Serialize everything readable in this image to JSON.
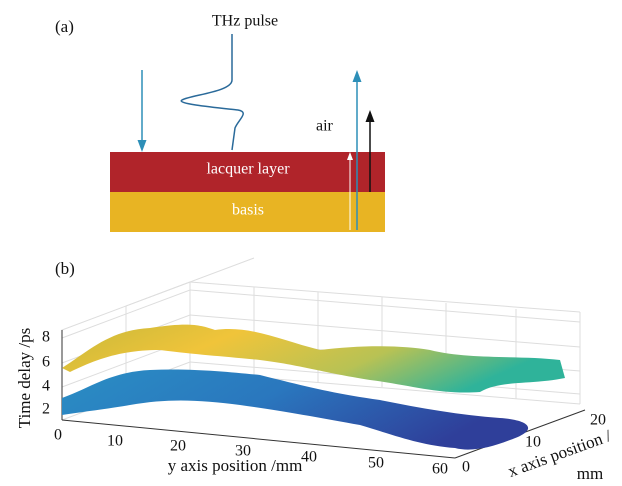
{
  "panel_a": {
    "label": "(a)",
    "pulse_label": "THz pulse",
    "medium_label": "air",
    "layers": [
      "lacquer layer",
      "basis"
    ]
  },
  "panel_b": {
    "label": "(b)",
    "z_label": "Time delay /ps",
    "y_label": "y axis position /mm",
    "x_label": "x axis position /",
    "x_unit": "mm",
    "z_ticks": [
      "2",
      "4",
      "6",
      "8"
    ],
    "y_ticks": [
      "0",
      "10",
      "20",
      "30",
      "40",
      "50",
      "60"
    ],
    "x_ticks": [
      "0",
      "10",
      "20"
    ]
  }
}
